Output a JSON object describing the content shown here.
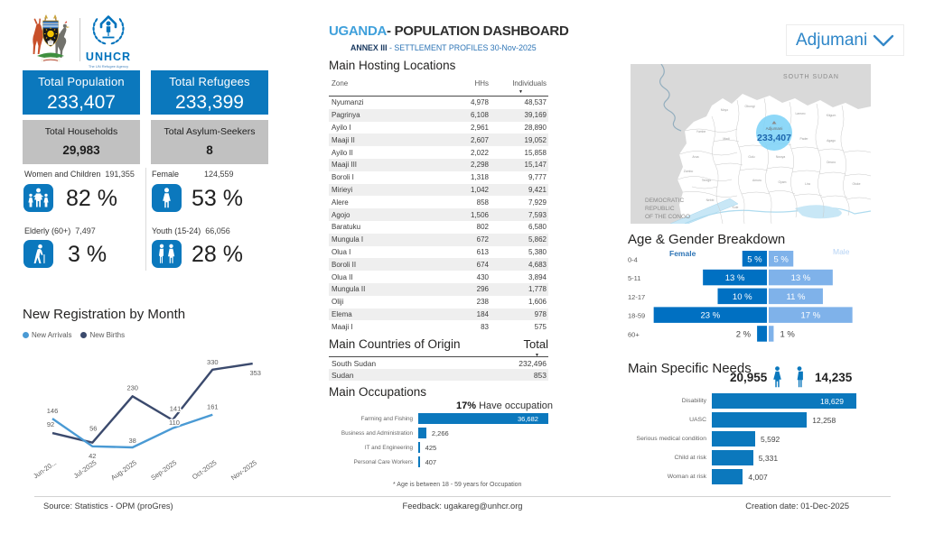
{
  "header": {
    "title_highlight": "UGANDA",
    "title_rest": "- POPULATION DASHBOARD",
    "subtitle_bold": "ANNEX III",
    "subtitle_rest": " - SETTLEMENT PROFILES 30-Nov-2025",
    "region_selector": "Adjumani"
  },
  "logos": {
    "unhcr_wordmark": "UNHCR",
    "unhcr_tagline": "The UN Refugee Agency"
  },
  "cards": {
    "population": {
      "label": "Total Population",
      "value": "233,407"
    },
    "refugees": {
      "label": "Total Refugees",
      "value": "233,399"
    },
    "households": {
      "label": "Total Households",
      "value": "29,983"
    },
    "asylum": {
      "label": "Total Asylum-Seekers",
      "value": "8"
    }
  },
  "stats": [
    {
      "label": "Women and Children",
      "value": "191,355",
      "pct": "82 %",
      "icon": "family-icon"
    },
    {
      "label": "Female",
      "value": "124,559",
      "pct": "53 %",
      "icon": "female-icon"
    },
    {
      "label": "Elderly (60+)",
      "value": "7,497",
      "pct": "3 %",
      "icon": "elderly-icon"
    },
    {
      "label": "Youth (15-24)",
      "value": "66,056",
      "pct": "28 %",
      "icon": "youth-icon"
    }
  ],
  "registration": {
    "title": "New Registration by Month",
    "legend": [
      {
        "label": "New Arrivals",
        "color": "#4a9ad4"
      },
      {
        "label": "New Births",
        "color": "#3b4a6d"
      }
    ]
  },
  "hosting": {
    "title": "Main Hosting Locations",
    "columns": [
      "Zone",
      "HHs",
      "Individuals"
    ],
    "rows": [
      [
        "Nyumanzi",
        "4,978",
        "48,537"
      ],
      [
        "Pagrinya",
        "6,108",
        "39,169"
      ],
      [
        "Ayilo I",
        "2,961",
        "28,890"
      ],
      [
        "Maaji II",
        "2,607",
        "19,052"
      ],
      [
        "Ayilo II",
        "2,022",
        "15,858"
      ],
      [
        "Maaji III",
        "2,298",
        "15,147"
      ],
      [
        "Boroli I",
        "1,318",
        "9,777"
      ],
      [
        "Mirieyi",
        "1,042",
        "9,421"
      ],
      [
        "Alere",
        "858",
        "7,929"
      ],
      [
        "Agojo",
        "1,506",
        "7,593"
      ],
      [
        "Baratuku",
        "802",
        "6,580"
      ],
      [
        "Mungula I",
        "672",
        "5,862"
      ],
      [
        "Olua I",
        "613",
        "5,380"
      ],
      [
        "Boroli II",
        "674",
        "4,683"
      ],
      [
        "Olua II",
        "430",
        "3,894"
      ],
      [
        "Mungula II",
        "296",
        "1,778"
      ],
      [
        "Oliji",
        "238",
        "1,606"
      ],
      [
        "Elema",
        "184",
        "978"
      ],
      [
        "Maaji I",
        "83",
        "575"
      ]
    ]
  },
  "origin": {
    "title": "Main Countries of Origin",
    "total_label": "Total",
    "rows": [
      [
        "South Sudan",
        "232,496"
      ],
      [
        "Sudan",
        "853"
      ]
    ]
  },
  "occupations": {
    "title": "Main Occupations",
    "headline_pct": "17%",
    "headline_rest": " Have occupation",
    "footnote": "* Age is between 18 - 59 years for Occupation",
    "items": [
      {
        "label": "Farming and Fishing",
        "value": 36682,
        "display": "36,682"
      },
      {
        "label": "Business and Administration",
        "value": 2266,
        "display": "2,266"
      },
      {
        "label": "IT and Engineering",
        "value": 425,
        "display": "425"
      },
      {
        "label": "Personal Care Workers",
        "value": 407,
        "display": "407"
      }
    ]
  },
  "map": {
    "neighbor_top": "SOUTH SUDAN",
    "neighbor_bottom": [
      "DEMOCRATIC",
      "REPUBLIC",
      "OF THE CONGO"
    ],
    "bubble_label": "Adjumani",
    "bubble_value": "233,407",
    "district_labels": [
      "Yumbe",
      "Moyo",
      "Obongi",
      "Lamwo",
      "Kitgum",
      "Arua",
      "Terego",
      "Madi",
      "Gulu",
      "Pader",
      "Agago",
      "Amuru",
      "Nwoya",
      "Omoro",
      "Nebbi",
      "Oyam",
      "Lira",
      "Otuke",
      "Zombo",
      "Kole"
    ]
  },
  "age_gender": {
    "title": "Age & Gender Breakdown",
    "legend_female": "Female",
    "legend_male": "Male",
    "groups": [
      "0-4",
      "5-11",
      "12-17",
      "18-59",
      "60+"
    ],
    "female_pct": [
      5,
      13,
      10,
      23,
      2
    ],
    "male_pct": [
      5,
      13,
      11,
      17,
      1
    ],
    "female_labels": [
      "5 %",
      "13 %",
      "10 %",
      "23 %",
      "2 %"
    ],
    "male_labels": [
      "5 %",
      "13 %",
      "11 %",
      "17 %",
      "1 %"
    ]
  },
  "needs": {
    "title": "Main Specific Needs",
    "female_total": "20,955",
    "male_total": "14,235",
    "items": [
      {
        "label": "Disability",
        "value": 18629,
        "display": "18,629"
      },
      {
        "label": "UASC",
        "value": 12258,
        "display": "12,258"
      },
      {
        "label": "Serious medical condition",
        "value": 5592,
        "display": "5,592"
      },
      {
        "label": "Child at risk",
        "value": 5331,
        "display": "5,331"
      },
      {
        "label": "Woman at risk",
        "value": 4007,
        "display": "4,007"
      }
    ]
  },
  "footer": {
    "source": "Source: Statistics - OPM (proGres)",
    "feedback": "Feedback: ugakareg@unhcr.org",
    "creation": "Creation date: 01-Dec-2025"
  },
  "chart_data": [
    {
      "type": "line",
      "title": "New Registration by Month",
      "x": [
        "Jun-20...",
        "Jul-2025",
        "Aug-2025",
        "Sep-2025",
        "Oct-2025",
        "Nov-2025"
      ],
      "series": [
        {
          "name": "New Arrivals",
          "color": "#4a9ad4",
          "values": [
            146,
            42,
            38,
            110,
            161,
            null
          ]
        },
        {
          "name": "New Births",
          "color": "#3b4a6d",
          "values": [
            92,
            56,
            230,
            141,
            330,
            353
          ]
        }
      ],
      "ylim": [
        0,
        430
      ],
      "grid": false,
      "legend_position": "top-left"
    },
    {
      "type": "bar",
      "title": "Main Occupations",
      "orientation": "horizontal",
      "categories": [
        "Farming and Fishing",
        "Business and Administration",
        "IT and Engineering",
        "Personal Care Workers"
      ],
      "values": [
        36682,
        2266,
        425,
        407
      ],
      "annotation": "17% Have occupation",
      "xlim": [
        0,
        37000
      ]
    },
    {
      "type": "bar",
      "title": "Age & Gender Breakdown",
      "orientation": "horizontal-pyramid",
      "categories": [
        "0-4",
        "5-11",
        "12-17",
        "18-59",
        "60+"
      ],
      "series": [
        {
          "name": "Female",
          "color": "#0070c2",
          "values": [
            5,
            13,
            10,
            23,
            2
          ]
        },
        {
          "name": "Male",
          "color": "#7fb2ea",
          "values": [
            5,
            13,
            11,
            17,
            1
          ]
        }
      ],
      "unit": "percent"
    },
    {
      "type": "bar",
      "title": "Main Specific Needs",
      "orientation": "horizontal",
      "categories": [
        "Disability",
        "UASC",
        "Serious medical condition",
        "Child at risk",
        "Woman at risk"
      ],
      "values": [
        18629,
        12258,
        5592,
        5331,
        4007
      ],
      "xlim": [
        0,
        19000
      ]
    },
    {
      "type": "table",
      "title": "Main Hosting Locations",
      "columns": [
        "Zone",
        "HHs",
        "Individuals"
      ],
      "rows": [
        [
          "Nyumanzi",
          4978,
          48537
        ],
        [
          "Pagrinya",
          6108,
          39169
        ],
        [
          "Ayilo I",
          2961,
          28890
        ],
        [
          "Maaji II",
          2607,
          19052
        ],
        [
          "Ayilo II",
          2022,
          15858
        ],
        [
          "Maaji III",
          2298,
          15147
        ],
        [
          "Boroli I",
          1318,
          9777
        ],
        [
          "Mirieyi",
          1042,
          9421
        ],
        [
          "Alere",
          858,
          7929
        ],
        [
          "Agojo",
          1506,
          7593
        ],
        [
          "Baratuku",
          802,
          6580
        ],
        [
          "Mungula I",
          672,
          5862
        ],
        [
          "Olua I",
          613,
          5380
        ],
        [
          "Boroli II",
          674,
          4683
        ],
        [
          "Olua II",
          430,
          3894
        ],
        [
          "Mungula II",
          296,
          1778
        ],
        [
          "Oliji",
          238,
          1606
        ],
        [
          "Elema",
          184,
          978
        ],
        [
          "Maaji I",
          83,
          575
        ]
      ]
    },
    {
      "type": "table",
      "title": "Main Countries of Origin",
      "columns": [
        "Country",
        "Total"
      ],
      "rows": [
        [
          "South Sudan",
          232496
        ],
        [
          "Sudan",
          853
        ]
      ]
    }
  ]
}
